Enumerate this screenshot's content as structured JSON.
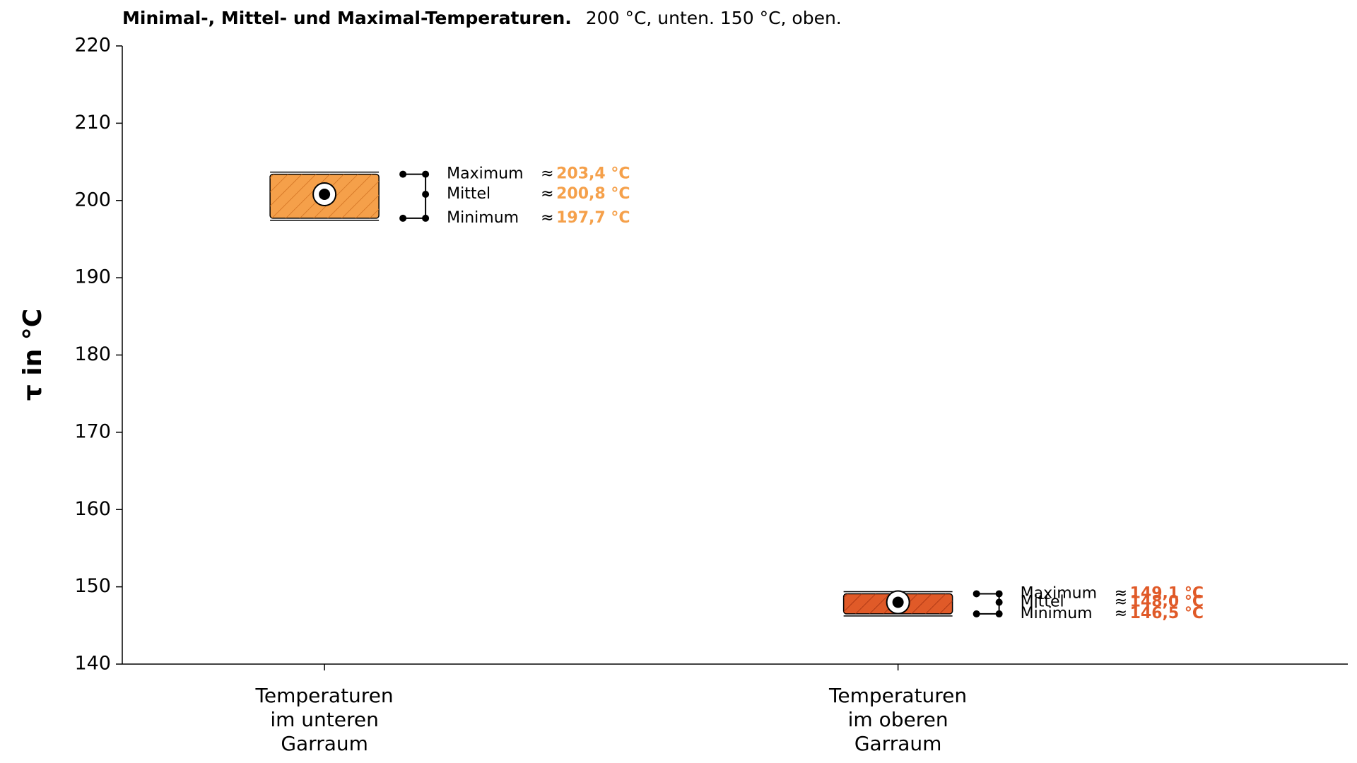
{
  "chart_data": {
    "type": "range",
    "title": "Minimal-, Mittel- und Maximal-Temperaturen.",
    "subtitle": "200 °C, unten. 150 °C, oben.",
    "y_label": "τ in °C",
    "approx_symbol": "≈",
    "categories": [
      "Temperaturen\nim unteren\nGarraum",
      "Temperaturen\nim oberen\nGarraum"
    ],
    "colors": [
      "#f5a04a",
      "#e05a28"
    ],
    "series": [
      {
        "name": "Maximum",
        "values": [
          203.4,
          149.1
        ],
        "value_labels": [
          "203,4 °C",
          "149,1 °C"
        ]
      },
      {
        "name": "Mittel",
        "values": [
          200.8,
          148.0
        ],
        "value_labels": [
          "200,8 °C",
          "148,0 °C"
        ]
      },
      {
        "name": "Minimum",
        "values": [
          197.7,
          146.5
        ],
        "value_labels": [
          "197,7 °C",
          "146,5 °C"
        ]
      }
    ],
    "ylim": [
      140,
      220
    ],
    "yticks": [
      140,
      150,
      160,
      170,
      180,
      190,
      200,
      210,
      220
    ]
  }
}
